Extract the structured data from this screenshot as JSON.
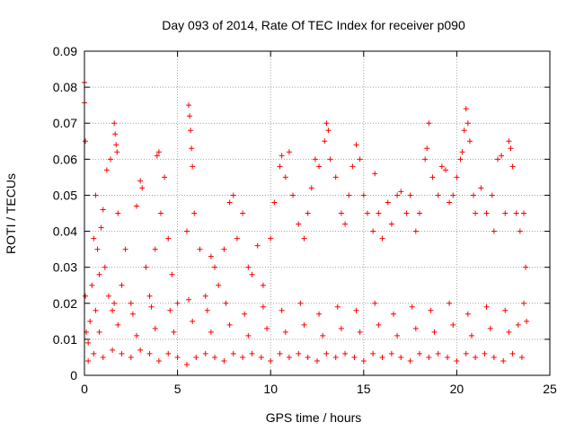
{
  "chart_data": {
    "type": "scatter",
    "title": "Day 093 of 2014, Rate Of TEC Index for receiver p090",
    "xlabel": "GPS time / hours",
    "ylabel": "ROTI / TECUs",
    "xlim": [
      0,
      25
    ],
    "ylim": [
      0,
      0.09
    ],
    "grid": true,
    "marker": "+",
    "color": "#ff0000",
    "x_ticks": [
      0,
      5,
      10,
      15,
      20,
      25
    ],
    "x_tick_labels": [
      "0",
      "5",
      "10",
      "15",
      "20",
      "25"
    ],
    "y_ticks": [
      0,
      0.01,
      0.02,
      0.03,
      0.04,
      0.05,
      0.06,
      0.07,
      0.08,
      0.09
    ],
    "y_tick_labels": [
      "0",
      "0.01",
      "0.02",
      "0.03",
      "0.04",
      "0.05",
      "0.06",
      "0.07",
      "0.08",
      "0.09"
    ],
    "series": [
      {
        "name": "ROTI",
        "points": [
          [
            0.0,
            0.0813
          ],
          [
            0.0,
            0.0757
          ],
          [
            0.05,
            0.065
          ],
          [
            0.05,
            0.022
          ],
          [
            0.1,
            0.012
          ],
          [
            0.2,
            0.009
          ],
          [
            0.3,
            0.015
          ],
          [
            0.4,
            0.025
          ],
          [
            0.5,
            0.038
          ],
          [
            0.6,
            0.05
          ],
          [
            0.7,
            0.035
          ],
          [
            0.8,
            0.028
          ],
          [
            0.9,
            0.041
          ],
          [
            1.0,
            0.046
          ],
          [
            1.1,
            0.03
          ],
          [
            1.2,
            0.057
          ],
          [
            1.3,
            0.022
          ],
          [
            1.4,
            0.06
          ],
          [
            1.5,
            0.018
          ],
          [
            1.6,
            0.07
          ],
          [
            1.65,
            0.067
          ],
          [
            1.7,
            0.064
          ],
          [
            1.75,
            0.062
          ],
          [
            1.8,
            0.045
          ],
          [
            2.0,
            0.025
          ],
          [
            2.2,
            0.035
          ],
          [
            2.5,
            0.02
          ],
          [
            2.8,
            0.047
          ],
          [
            3.0,
            0.054
          ],
          [
            3.1,
            0.052
          ],
          [
            3.3,
            0.03
          ],
          [
            3.5,
            0.022
          ],
          [
            3.8,
            0.035
          ],
          [
            3.9,
            0.061
          ],
          [
            4.0,
            0.062
          ],
          [
            4.1,
            0.045
          ],
          [
            4.3,
            0.055
          ],
          [
            4.5,
            0.038
          ],
          [
            4.7,
            0.028
          ],
          [
            5.0,
            0.02
          ],
          [
            5.5,
            0.04
          ],
          [
            5.6,
            0.075
          ],
          [
            5.65,
            0.072
          ],
          [
            5.7,
            0.068
          ],
          [
            5.75,
            0.063
          ],
          [
            5.8,
            0.058
          ],
          [
            5.9,
            0.045
          ],
          [
            6.2,
            0.035
          ],
          [
            6.5,
            0.022
          ],
          [
            6.8,
            0.033
          ],
          [
            7.0,
            0.03
          ],
          [
            7.2,
            0.025
          ],
          [
            7.5,
            0.035
          ],
          [
            7.8,
            0.048
          ],
          [
            8.0,
            0.05
          ],
          [
            8.2,
            0.038
          ],
          [
            8.5,
            0.045
          ],
          [
            8.8,
            0.03
          ],
          [
            9.0,
            0.028
          ],
          [
            9.3,
            0.036
          ],
          [
            9.6,
            0.025
          ],
          [
            10.0,
            0.038
          ],
          [
            10.2,
            0.048
          ],
          [
            10.5,
            0.058
          ],
          [
            10.6,
            0.061
          ],
          [
            10.8,
            0.055
          ],
          [
            11.0,
            0.062
          ],
          [
            11.2,
            0.05
          ],
          [
            11.5,
            0.042
          ],
          [
            11.8,
            0.038
          ],
          [
            12.0,
            0.045
          ],
          [
            12.2,
            0.052
          ],
          [
            12.4,
            0.06
          ],
          [
            12.6,
            0.058
          ],
          [
            12.9,
            0.065
          ],
          [
            13.0,
            0.07
          ],
          [
            13.1,
            0.068
          ],
          [
            13.2,
            0.06
          ],
          [
            13.5,
            0.055
          ],
          [
            13.8,
            0.045
          ],
          [
            14.0,
            0.042
          ],
          [
            14.2,
            0.05
          ],
          [
            14.4,
            0.058
          ],
          [
            14.6,
            0.064
          ],
          [
            14.8,
            0.06
          ],
          [
            15.0,
            0.05
          ],
          [
            15.2,
            0.045
          ],
          [
            15.5,
            0.04
          ],
          [
            15.6,
            0.056
          ],
          [
            15.8,
            0.045
          ],
          [
            16.0,
            0.038
          ],
          [
            16.3,
            0.048
          ],
          [
            16.5,
            0.042
          ],
          [
            16.8,
            0.05
          ],
          [
            17.0,
            0.051
          ],
          [
            17.3,
            0.045
          ],
          [
            17.5,
            0.05
          ],
          [
            17.8,
            0.04
          ],
          [
            18.0,
            0.045
          ],
          [
            18.3,
            0.06
          ],
          [
            18.4,
            0.063
          ],
          [
            18.5,
            0.07
          ],
          [
            18.7,
            0.055
          ],
          [
            19.0,
            0.05
          ],
          [
            19.2,
            0.058
          ],
          [
            19.4,
            0.057
          ],
          [
            19.6,
            0.048
          ],
          [
            19.8,
            0.05
          ],
          [
            20.0,
            0.055
          ],
          [
            20.2,
            0.06
          ],
          [
            20.3,
            0.062
          ],
          [
            20.4,
            0.068
          ],
          [
            20.5,
            0.074
          ],
          [
            20.6,
            0.07
          ],
          [
            20.7,
            0.065
          ],
          [
            20.9,
            0.05
          ],
          [
            21.0,
            0.045
          ],
          [
            21.3,
            0.052
          ],
          [
            21.6,
            0.045
          ],
          [
            21.9,
            0.05
          ],
          [
            22.0,
            0.04
          ],
          [
            22.2,
            0.06
          ],
          [
            22.4,
            0.061
          ],
          [
            22.6,
            0.045
          ],
          [
            22.8,
            0.065
          ],
          [
            22.9,
            0.063
          ],
          [
            23.0,
            0.058
          ],
          [
            23.2,
            0.045
          ],
          [
            23.4,
            0.04
          ],
          [
            23.6,
            0.045
          ],
          [
            23.7,
            0.03
          ],
          [
            23.75,
            0.015
          ],
          [
            0.2,
            0.004
          ],
          [
            0.5,
            0.006
          ],
          [
            1.0,
            0.005
          ],
          [
            1.5,
            0.007
          ],
          [
            2.0,
            0.006
          ],
          [
            2.5,
            0.005
          ],
          [
            3.0,
            0.007
          ],
          [
            3.5,
            0.006
          ],
          [
            4.0,
            0.004
          ],
          [
            4.5,
            0.006
          ],
          [
            5.0,
            0.005
          ],
          [
            5.5,
            0.003
          ],
          [
            6.0,
            0.005
          ],
          [
            6.5,
            0.006
          ],
          [
            7.0,
            0.005
          ],
          [
            7.5,
            0.004
          ],
          [
            8.0,
            0.006
          ],
          [
            8.5,
            0.005
          ],
          [
            9.0,
            0.006
          ],
          [
            9.5,
            0.005
          ],
          [
            10.0,
            0.004
          ],
          [
            10.5,
            0.006
          ],
          [
            11.0,
            0.005
          ],
          [
            11.5,
            0.006
          ],
          [
            12.0,
            0.005
          ],
          [
            12.5,
            0.004
          ],
          [
            13.0,
            0.006
          ],
          [
            13.5,
            0.005
          ],
          [
            14.0,
            0.006
          ],
          [
            14.5,
            0.005
          ],
          [
            15.0,
            0.004
          ],
          [
            15.5,
            0.006
          ],
          [
            16.0,
            0.005
          ],
          [
            16.5,
            0.006
          ],
          [
            17.0,
            0.005
          ],
          [
            17.5,
            0.004
          ],
          [
            18.0,
            0.006
          ],
          [
            18.5,
            0.005
          ],
          [
            19.0,
            0.006
          ],
          [
            19.5,
            0.005
          ],
          [
            20.0,
            0.004
          ],
          [
            20.5,
            0.006
          ],
          [
            21.0,
            0.005
          ],
          [
            21.5,
            0.006
          ],
          [
            22.0,
            0.005
          ],
          [
            22.5,
            0.004
          ],
          [
            23.0,
            0.006
          ],
          [
            23.5,
            0.005
          ],
          [
            0.8,
            0.012
          ],
          [
            1.8,
            0.014
          ],
          [
            2.8,
            0.011
          ],
          [
            3.8,
            0.013
          ],
          [
            4.8,
            0.012
          ],
          [
            5.8,
            0.015
          ],
          [
            6.8,
            0.012
          ],
          [
            7.8,
            0.014
          ],
          [
            8.8,
            0.011
          ],
          [
            9.8,
            0.013
          ],
          [
            10.8,
            0.012
          ],
          [
            11.8,
            0.014
          ],
          [
            12.8,
            0.011
          ],
          [
            13.8,
            0.013
          ],
          [
            14.8,
            0.012
          ],
          [
            15.8,
            0.014
          ],
          [
            16.8,
            0.011
          ],
          [
            17.8,
            0.013
          ],
          [
            18.8,
            0.012
          ],
          [
            19.8,
            0.014
          ],
          [
            20.8,
            0.011
          ],
          [
            21.8,
            0.013
          ],
          [
            22.8,
            0.012
          ],
          [
            23.3,
            0.014
          ],
          [
            0.6,
            0.018
          ],
          [
            1.6,
            0.02
          ],
          [
            2.6,
            0.017
          ],
          [
            3.6,
            0.019
          ],
          [
            4.6,
            0.018
          ],
          [
            5.6,
            0.021
          ],
          [
            6.6,
            0.018
          ],
          [
            7.6,
            0.02
          ],
          [
            8.6,
            0.017
          ],
          [
            9.6,
            0.019
          ],
          [
            10.6,
            0.018
          ],
          [
            11.6,
            0.02
          ],
          [
            12.6,
            0.017
          ],
          [
            13.6,
            0.019
          ],
          [
            14.6,
            0.018
          ],
          [
            15.6,
            0.02
          ],
          [
            16.6,
            0.017
          ],
          [
            17.6,
            0.019
          ],
          [
            18.6,
            0.018
          ],
          [
            19.6,
            0.02
          ],
          [
            20.6,
            0.017
          ],
          [
            21.6,
            0.019
          ],
          [
            22.6,
            0.018
          ],
          [
            23.6,
            0.02
          ]
        ]
      }
    ]
  }
}
